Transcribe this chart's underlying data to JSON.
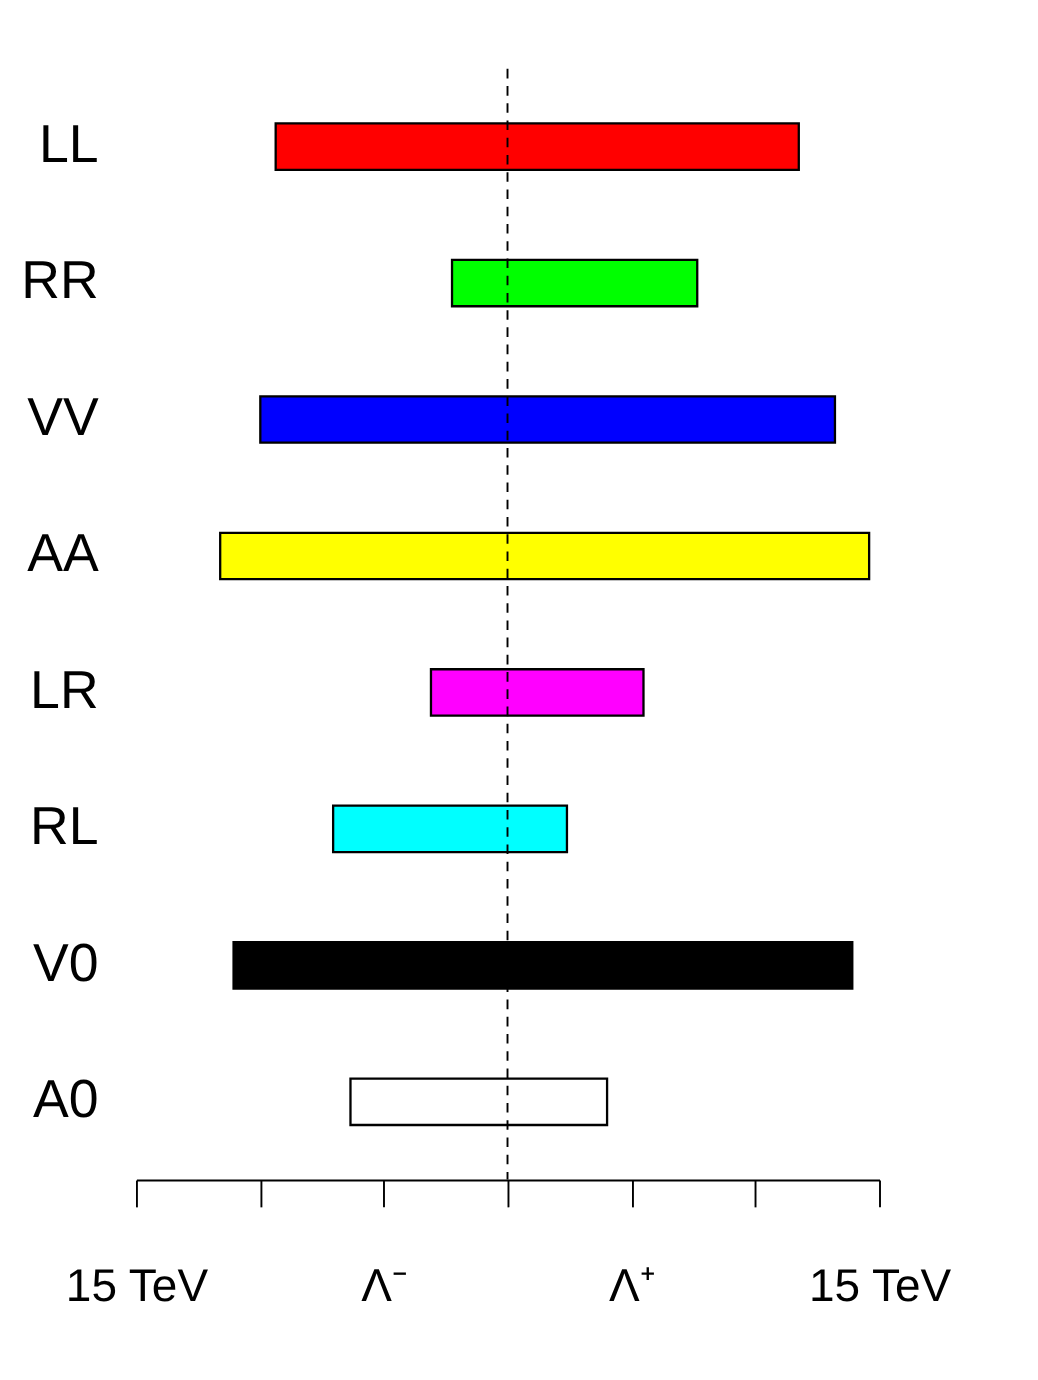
{
  "chart_data": {
    "type": "bar",
    "orientation": "horizontal",
    "categories": [
      "LL",
      "RR",
      "VV",
      "AA",
      "LR",
      "RL",
      "V0",
      "A0"
    ],
    "base": [
      -9.36,
      -2.24,
      -9.98,
      -11.6,
      -3.09,
      -7.04,
      -11.06,
      -6.34
    ],
    "values": [
      21.12,
      9.9,
      23.2,
      26.2,
      8.58,
      9.44,
      24.98,
      10.36
    ],
    "colors": [
      "#ff0000",
      "#00ff00",
      "#0000ff",
      "#ffff00",
      "#ff00ff",
      "#00ffff",
      "#000000",
      "#ffffff"
    ],
    "xlim": [
      -15,
      15
    ],
    "xticks": [
      {
        "value": -15,
        "label": "15 TeV"
      },
      {
        "value": -10,
        "label": null
      },
      {
        "value": -5,
        "label": "Λ⁻"
      },
      {
        "value": 0,
        "label": null
      },
      {
        "value": 5,
        "label": "Λ⁺"
      },
      {
        "value": 10,
        "label": null
      },
      {
        "value": 15,
        "label": "15 TeV"
      }
    ],
    "ref_lines": [
      {
        "axis": "x",
        "value": 0,
        "line_style": "dashed",
        "color": "#000000"
      }
    ],
    "grid": false
  }
}
